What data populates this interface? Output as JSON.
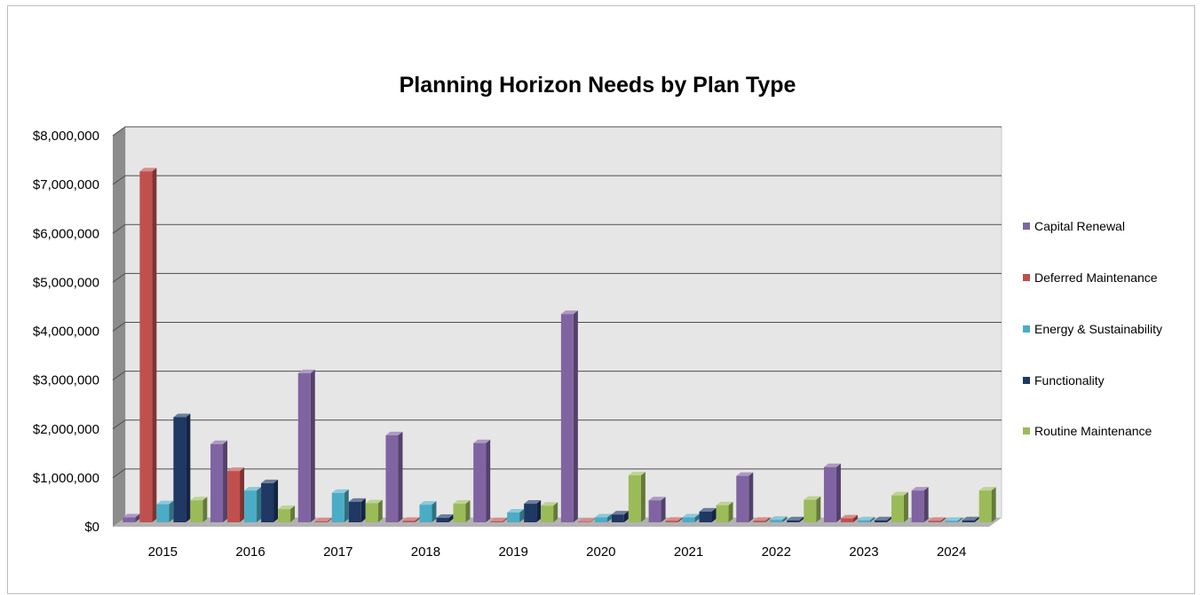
{
  "chart_data": {
    "type": "bar",
    "title": "Planning Horizon Needs by Plan Type",
    "xlabel": "",
    "ylabel": "",
    "categories": [
      "2015",
      "2016",
      "2017",
      "2018",
      "2019",
      "2020",
      "2021",
      "2022",
      "2023",
      "2024"
    ],
    "ylim": [
      0,
      8000000
    ],
    "yticks": [
      "$0",
      "$1,000,000",
      "$2,000,000",
      "$3,000,000",
      "$4,000,000",
      "$5,000,000",
      "$6,000,000",
      "$7,000,000",
      "$8,000,000"
    ],
    "ytick_values": [
      0,
      1000000,
      2000000,
      3000000,
      4000000,
      5000000,
      6000000,
      7000000,
      8000000
    ],
    "grid": true,
    "legend_position": "right",
    "series": [
      {
        "name": "Capital Renewal",
        "color": "#8064a2",
        "values": [
          100000,
          1600000,
          3050000,
          1780000,
          1620000,
          4260000,
          450000,
          950000,
          1130000,
          650000
        ]
      },
      {
        "name": "Deferred Maintenance",
        "color": "#c0504d",
        "values": [
          7180000,
          1050000,
          20000,
          30000,
          20000,
          10000,
          30000,
          30000,
          80000,
          30000
        ]
      },
      {
        "name": "Energy & Sustainability",
        "color": "#4bacc6",
        "values": [
          370000,
          650000,
          600000,
          360000,
          200000,
          100000,
          100000,
          50000,
          40000,
          30000
        ]
      },
      {
        "name": "Functionality",
        "color": "#1f3864",
        "values": [
          2150000,
          800000,
          420000,
          90000,
          380000,
          160000,
          220000,
          40000,
          40000,
          40000
        ]
      },
      {
        "name": "Routine Maintenance",
        "color": "#9bbb59",
        "values": [
          450000,
          270000,
          390000,
          380000,
          340000,
          960000,
          350000,
          460000,
          550000,
          650000
        ]
      }
    ]
  }
}
